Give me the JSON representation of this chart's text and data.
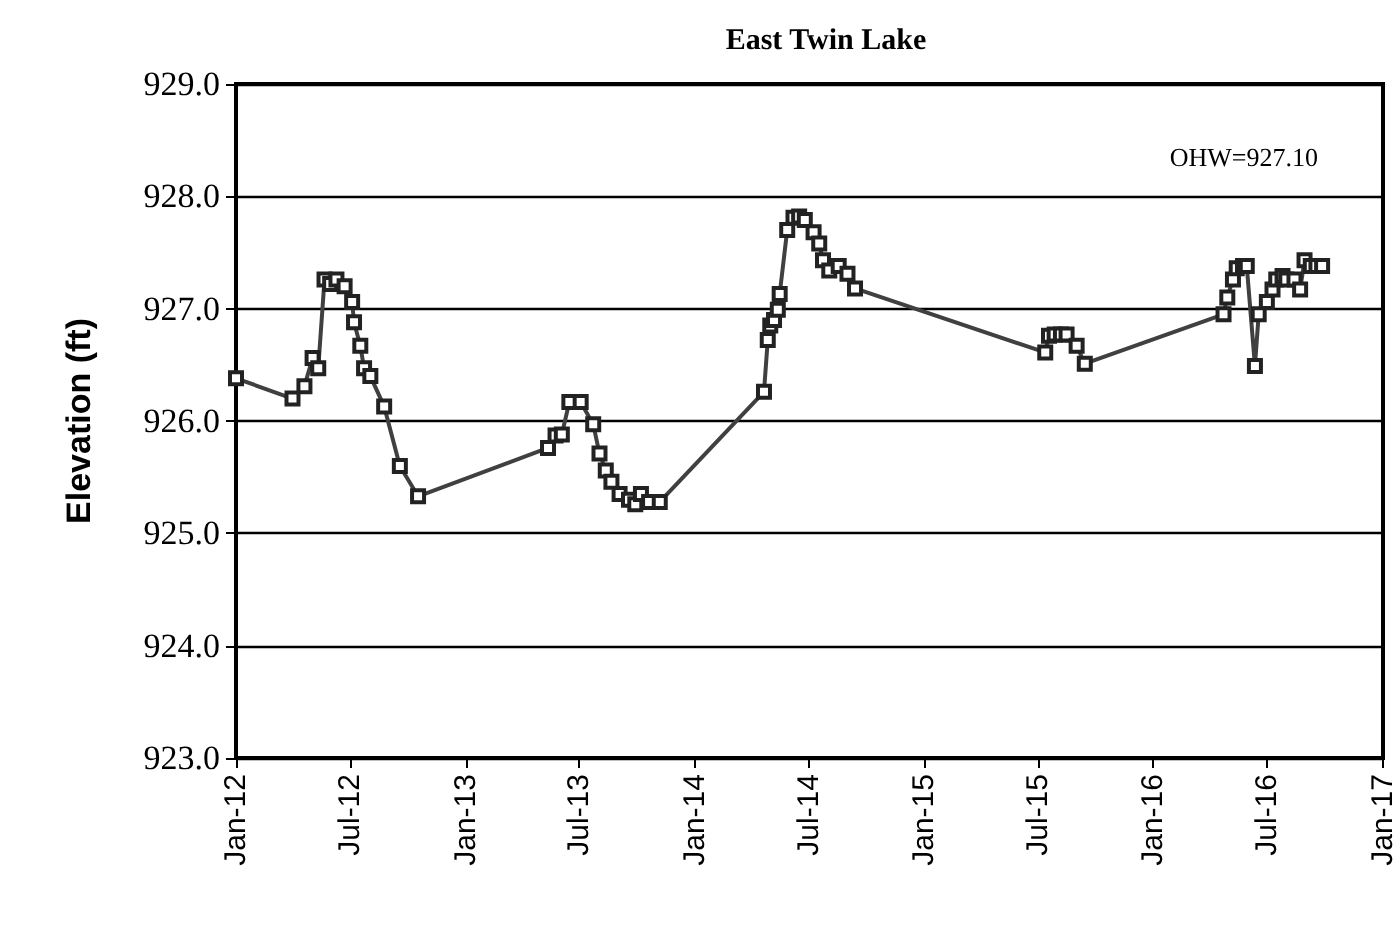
{
  "chart_data": {
    "type": "line",
    "title": "East Twin Lake",
    "ylabel": "Elevation (ft)",
    "annotations": [
      "OHW=927.10"
    ],
    "x": [
      "2012-01-01",
      "2012-03-31",
      "2012-04-19",
      "2012-05-02",
      "2012-05-11",
      "2012-05-21",
      "2012-05-30",
      "2012-06-09",
      "2012-06-22",
      "2012-07-04",
      "2012-07-07",
      "2012-07-17",
      "2012-07-23",
      "2012-08-02",
      "2012-08-24",
      "2012-09-18",
      "2012-10-17",
      "2013-05-12",
      "2013-05-24",
      "2013-06-03",
      "2013-06-15",
      "2013-07-03",
      "2013-07-23",
      "2013-08-02",
      "2013-08-12",
      "2013-08-21",
      "2013-09-03",
      "2013-09-18",
      "2013-09-28",
      "2013-10-07",
      "2013-10-20",
      "2013-11-06",
      "2014-04-21",
      "2014-04-27",
      "2014-05-01",
      "2014-05-07",
      "2014-05-13",
      "2014-05-16",
      "2014-05-28",
      "2014-06-07",
      "2014-06-16",
      "2014-06-25",
      "2014-07-09",
      "2014-07-18",
      "2014-07-24",
      "2014-08-03",
      "2014-08-18",
      "2014-09-01",
      "2014-09-13",
      "2015-07-13",
      "2015-07-19",
      "2015-07-28",
      "2015-08-07",
      "2015-08-16",
      "2015-09-01",
      "2015-09-14",
      "2016-04-22",
      "2016-04-28",
      "2016-05-07",
      "2016-05-13",
      "2016-05-23",
      "2016-05-29",
      "2016-06-11",
      "2016-06-17",
      "2016-06-30",
      "2016-07-09",
      "2016-07-15",
      "2016-07-25",
      "2016-07-31",
      "2016-08-13",
      "2016-08-22",
      "2016-08-29",
      "2016-09-08",
      "2016-09-17",
      "2016-09-26"
    ],
    "series": [
      {
        "color": "#404040",
        "values": [
          926.38,
          926.2,
          926.31,
          926.56,
          926.47,
          927.26,
          927.22,
          927.26,
          927.2,
          927.06,
          926.88,
          926.67,
          926.47,
          926.4,
          926.13,
          925.6,
          925.33,
          925.76,
          925.87,
          925.88,
          926.17,
          926.17,
          925.97,
          925.71,
          925.56,
          925.46,
          925.35,
          925.3,
          925.26,
          925.35,
          925.28,
          925.28,
          926.26,
          926.72,
          926.85,
          926.9,
          926.99,
          927.13,
          927.7,
          927.81,
          927.82,
          927.79,
          927.68,
          927.58,
          927.43,
          927.34,
          927.38,
          927.31,
          927.18,
          926.61,
          926.76,
          926.77,
          926.77,
          926.77,
          926.67,
          926.51,
          926.95,
          927.1,
          927.26,
          927.36,
          927.38,
          927.38,
          926.49,
          926.95,
          927.06,
          927.17,
          927.26,
          927.29,
          927.26,
          927.26,
          927.17,
          927.43,
          927.38,
          927.38,
          927.38
        ]
      }
    ],
    "xlim": [
      "2012-01-01",
      "2017-01-01"
    ],
    "xticks": [
      {
        "value": "2012-01-01",
        "label": "Jan-12"
      },
      {
        "value": "2012-07-01",
        "label": "Jul-12"
      },
      {
        "value": "2013-01-01",
        "label": "Jan-13"
      },
      {
        "value": "2013-07-01",
        "label": "Jul-13"
      },
      {
        "value": "2014-01-01",
        "label": "Jan-14"
      },
      {
        "value": "2014-07-01",
        "label": "Jul-14"
      },
      {
        "value": "2015-01-01",
        "label": "Jan-15"
      },
      {
        "value": "2015-07-01",
        "label": "Jul-15"
      },
      {
        "value": "2016-01-01",
        "label": "Jan-16"
      },
      {
        "value": "2016-07-01",
        "label": "Jul-16"
      },
      {
        "value": "2017-01-01",
        "label": "Jan-17"
      }
    ],
    "ylim": [
      923,
      929
    ],
    "yticks": [
      {
        "value": 923,
        "label": "923.0"
      },
      {
        "value": 924,
        "label": "924.0"
      },
      {
        "value": 925,
        "label": "925.0"
      },
      {
        "value": 926,
        "label": "926.0"
      },
      {
        "value": 927,
        "label": "927.0"
      },
      {
        "value": 928,
        "label": "928.0"
      },
      {
        "value": 929,
        "label": "929.0"
      }
    ],
    "grid": "y",
    "marker": "square",
    "line_style": "solid"
  }
}
